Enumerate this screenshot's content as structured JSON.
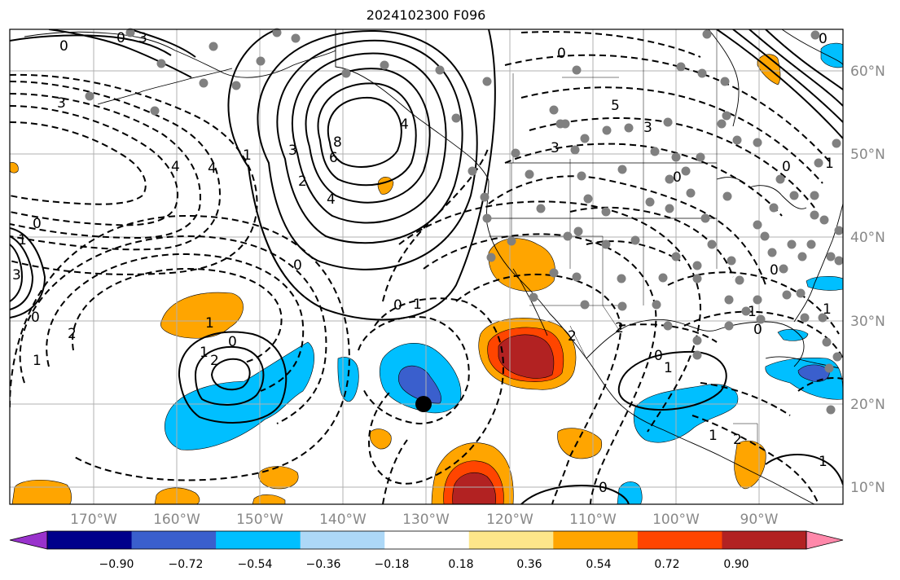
{
  "title": "2024102300 F096",
  "colors": {
    "background": "#ffffff",
    "grid": "#b0b0b0",
    "coast": "#000000",
    "station_dot": "#808080",
    "storm_marker": "#000000"
  },
  "lat_labels": [
    "60°N",
    "50°N",
    "40°N",
    "30°N",
    "20°N",
    "10°N"
  ],
  "lon_labels": [
    "170°W",
    "160°W",
    "150°W",
    "140°W",
    "130°W",
    "120°W",
    "110°W",
    "100°W",
    "90°W"
  ],
  "colorbar": {
    "colors": [
      "#9932cc",
      "#00008b",
      "#3a5fcd",
      "#00bfff",
      "#add8f7",
      "#ffffff",
      "#fde68a",
      "#ffa500",
      "#ff4500",
      "#b22222",
      "#ff88aa"
    ],
    "tick_labels": [
      "−0.90",
      "−0.72",
      "−0.54",
      "−0.36",
      "−0.18",
      "0.18",
      "0.36",
      "0.54",
      "0.72",
      "0.90"
    ]
  },
  "contour_labels": [
    "0",
    "0",
    "3",
    "3",
    "4",
    "4",
    "1",
    "2",
    "3",
    "8",
    "6",
    "4",
    "0",
    "4",
    "3",
    "0",
    "5",
    "3",
    "0",
    "0",
    "1",
    "0",
    "1",
    "2",
    "0",
    "1",
    "3",
    "1",
    "2",
    "0",
    "1",
    "2",
    "2",
    "0",
    "1",
    "0",
    "1",
    "2",
    "1",
    "0",
    "0",
    "1",
    "1",
    "0",
    "1",
    "0"
  ]
}
